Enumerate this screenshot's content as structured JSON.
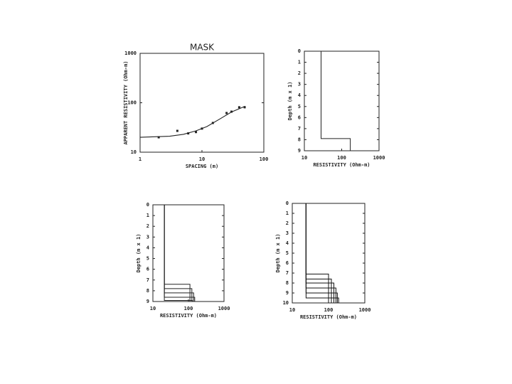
{
  "chart_data": [
    {
      "type": "scatter",
      "title": "MASK",
      "x_label": "SPACING (m)",
      "y_label": "APPARENT RESISTIVITY (Ohm-m)",
      "xlog": true,
      "ylog": true,
      "xlim": [
        1,
        100
      ],
      "ylim": [
        10,
        1000
      ],
      "xticks": [
        1,
        10,
        100
      ],
      "yticks": [
        10,
        100,
        1000
      ],
      "y_inverted": false,
      "series": [
        {
          "mode": "markers",
          "color": "#222",
          "x": [
            2,
            4,
            6,
            8,
            10,
            15,
            25,
            30,
            40,
            49
          ],
          "values": [
            20,
            27,
            24,
            25.5,
            30,
            39,
            62,
            66,
            81,
            81
          ]
        },
        {
          "mode": "line",
          "color": "#222",
          "x": [
            1,
            3,
            5,
            8,
            12,
            20,
            30,
            50
          ],
          "values": [
            20,
            21,
            23,
            27,
            33,
            48,
            65,
            85
          ]
        }
      ]
    },
    {
      "type": "step",
      "x_label": "RESISTIVITY (Ohm-m)",
      "y_label": "Depth (m x 1)",
      "xlog": true,
      "ylog": false,
      "xlim": [
        10,
        1000
      ],
      "ylim": [
        0,
        9
      ],
      "xticks": [
        10,
        100,
        1000
      ],
      "yticks": [
        0,
        1,
        2,
        3,
        4,
        5,
        6,
        7,
        8,
        9
      ],
      "y_inverted": true,
      "series": [
        {
          "mode": "line",
          "color": "#222",
          "x": [
            28,
            28,
            170,
            170
          ],
          "values": [
            0,
            7.9,
            7.9,
            9
          ]
        }
      ]
    },
    {
      "type": "step",
      "x_label": "RESISTIVITY (Ohm-m)",
      "y_label": "Depth (m x 1)",
      "xlog": true,
      "ylog": false,
      "xlim": [
        10,
        1000
      ],
      "ylim": [
        0,
        9
      ],
      "xticks": [
        10,
        100,
        1000
      ],
      "yticks": [
        0,
        1,
        2,
        3,
        4,
        5,
        6,
        7,
        8,
        9
      ],
      "y_inverted": true,
      "series": [
        {
          "mode": "line",
          "color": "#222",
          "x": [
            21,
            21,
            110,
            110
          ],
          "values": [
            0,
            7.4,
            7.4,
            9
          ]
        },
        {
          "mode": "line",
          "color": "#222",
          "x": [
            21,
            21,
            125,
            125
          ],
          "values": [
            0,
            7.8,
            7.8,
            9
          ]
        },
        {
          "mode": "line",
          "color": "#222",
          "x": [
            21,
            21,
            140,
            140
          ],
          "values": [
            0,
            8.2,
            8.2,
            9
          ]
        },
        {
          "mode": "line",
          "color": "#222",
          "x": [
            21,
            21,
            150,
            150
          ],
          "values": [
            0,
            8.6,
            8.6,
            9
          ]
        },
        {
          "mode": "line",
          "color": "#222",
          "x": [
            21,
            21,
            130,
            130
          ],
          "values": [
            0,
            8.9,
            8.9,
            9
          ]
        }
      ]
    },
    {
      "type": "step",
      "x_label": "RESISTIVITY (Ohm-m)",
      "y_label": "Depth (m x 1)",
      "xlog": true,
      "ylog": false,
      "xlim": [
        10,
        1000
      ],
      "ylim": [
        0,
        10
      ],
      "xticks": [
        10,
        100,
        1000
      ],
      "yticks": [
        0,
        1,
        2,
        3,
        4,
        5,
        6,
        7,
        8,
        9,
        10
      ],
      "y_inverted": true,
      "series": [
        {
          "mode": "line",
          "color": "#111",
          "x": [
            24,
            24,
            100,
            100
          ],
          "values": [
            0,
            7.1,
            7.1,
            10
          ]
        },
        {
          "mode": "line",
          "color": "#111",
          "x": [
            24,
            24,
            120,
            120
          ],
          "values": [
            0,
            7.6,
            7.6,
            10
          ]
        },
        {
          "mode": "line",
          "color": "#111",
          "x": [
            24,
            24,
            140,
            140
          ],
          "values": [
            0,
            8,
            8,
            10
          ]
        },
        {
          "mode": "line",
          "color": "#111",
          "x": [
            24,
            24,
            160,
            160
          ],
          "values": [
            0,
            8.5,
            8.5,
            10
          ]
        },
        {
          "mode": "line",
          "color": "#111",
          "x": [
            24,
            24,
            175,
            175
          ],
          "values": [
            0,
            9,
            9,
            10
          ]
        },
        {
          "mode": "line",
          "color": "#111",
          "x": [
            24,
            24,
            190,
            190
          ],
          "values": [
            0,
            9.5,
            9.5,
            10
          ]
        }
      ]
    }
  ]
}
